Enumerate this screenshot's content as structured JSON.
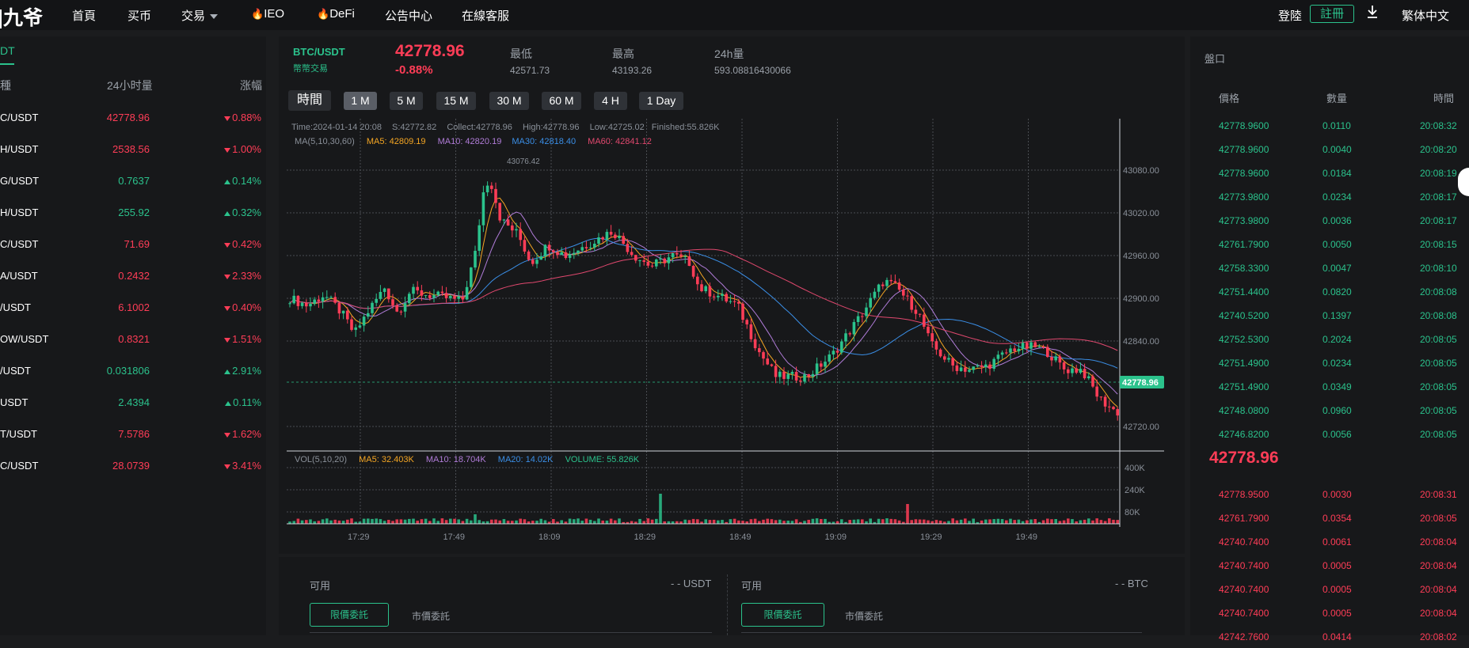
{
  "nav": {
    "logo": "九爷",
    "items": [
      "首頁",
      "买币",
      "交易",
      "IEO",
      "DeFi",
      "公告中心",
      "在線客服"
    ],
    "login": "登陸",
    "register": "註冊",
    "language": "繁体中文"
  },
  "market_list": {
    "tab": "DT",
    "headers": {
      "name": "種",
      "volume": "24小时量",
      "change": "涨幅"
    },
    "rows": [
      {
        "symbol": "C/USDT",
        "price": "42778.96",
        "change": "0.88%",
        "dir": "down"
      },
      {
        "symbol": "H/USDT",
        "price": "2538.56",
        "change": "1.00%",
        "dir": "down"
      },
      {
        "symbol": "G/USDT",
        "price": "0.7637",
        "change": "0.14%",
        "dir": "up"
      },
      {
        "symbol": "H/USDT",
        "price": "255.92",
        "change": "0.32%",
        "dir": "up"
      },
      {
        "symbol": "C/USDT",
        "price": "71.69",
        "change": "0.42%",
        "dir": "down"
      },
      {
        "symbol": "A/USDT",
        "price": "0.2432",
        "change": "2.33%",
        "dir": "down"
      },
      {
        "symbol": "/USDT",
        "price": "6.1002",
        "change": "0.40%",
        "dir": "down"
      },
      {
        "symbol": "OW/USDT",
        "price": "0.8321",
        "change": "1.51%",
        "dir": "down"
      },
      {
        "symbol": "/USDT",
        "price": "0.031806",
        "change": "2.91%",
        "dir": "up"
      },
      {
        "symbol": "USDT",
        "price": "2.4394",
        "change": "0.11%",
        "dir": "up"
      },
      {
        "symbol": "T/USDT",
        "price": "7.5786",
        "change": "1.62%",
        "dir": "down"
      },
      {
        "symbol": "C/USDT",
        "price": "28.0739",
        "change": "3.41%",
        "dir": "down"
      }
    ]
  },
  "ticker": {
    "pair": "BTC/USDT",
    "sub": "幣幣交易",
    "price": "42778.96",
    "change": "-0.88%",
    "low_label": "最低",
    "low": "42571.73",
    "high_label": "最高",
    "high": "43193.26",
    "vol_label": "24h量",
    "vol": "593.08816430066"
  },
  "intervals": {
    "time_label": "時間",
    "items": [
      "1 M",
      "5 M",
      "15 M",
      "30 M",
      "60 M",
      "4 H",
      "1 Day"
    ],
    "active": "1 M"
  },
  "chart_info": {
    "line1": [
      "Time:2024-01-14 20:08",
      "S:42772.82",
      "Collect:42778.96",
      "High:42778.96",
      "Low:42725.02",
      "Finished:55.826K"
    ],
    "ma_label": "MA(5,10,30,60)",
    "ma5": "MA5: 42809.19",
    "ma10": "MA10: 42820.19",
    "ma30": "MA30: 42818.40",
    "ma60": "MA60: 42841.12",
    "vol_label": "VOL(5,10,20)",
    "vol_ma5": "MA5: 32.403K",
    "vol_ma10": "MA10: 18.704K",
    "vol_ma20": "MA20: 14.02K",
    "vol_now": "VOLUME: 55.826K",
    "peak_label": "43076.42",
    "last_price_tag": "42778.96"
  },
  "chart_data": {
    "type": "candlestick",
    "y_ticks": [
      "43080.00",
      "43020.00",
      "42960.00",
      "42900.00",
      "42840.00",
      "42720.00"
    ],
    "vol_ticks": [
      "400K",
      "240K",
      "80K"
    ],
    "x_ticks": [
      "17:29",
      "17:49",
      "18:09",
      "18:29",
      "18:49",
      "19:09",
      "19:29",
      "19:49"
    ],
    "ylim": [
      42690,
      43130
    ],
    "colors": {
      "up": "#2bc28c",
      "down": "#ff3d57",
      "ma5": "#f5a623",
      "ma10": "#b07cd8",
      "ma30": "#3a8ee6",
      "ma60": "#e0486e"
    }
  },
  "trade": {
    "avail_label": "可用",
    "avail_usdt": "- - USDT",
    "avail_btc": "- - BTC",
    "limit": "限價委託",
    "market": "市價委託"
  },
  "orderbook": {
    "title": "盤口",
    "headers": [
      "價格",
      "數量",
      "時間"
    ],
    "mid_price": "42778.96",
    "buys": [
      [
        "42778.9600",
        "0.0110",
        "20:08:32"
      ],
      [
        "42778.9600",
        "0.0040",
        "20:08:20"
      ],
      [
        "42778.9600",
        "0.0184",
        "20:08:19"
      ],
      [
        "42773.9800",
        "0.0234",
        "20:08:17"
      ],
      [
        "42773.9800",
        "0.0036",
        "20:08:17"
      ],
      [
        "42761.7900",
        "0.0050",
        "20:08:15"
      ],
      [
        "42758.3300",
        "0.0047",
        "20:08:10"
      ],
      [
        "42751.4400",
        "0.0820",
        "20:08:08"
      ],
      [
        "42740.5200",
        "0.1397",
        "20:08:08"
      ],
      [
        "42752.5300",
        "0.2024",
        "20:08:05"
      ],
      [
        "42751.4900",
        "0.0234",
        "20:08:05"
      ],
      [
        "42751.4900",
        "0.0349",
        "20:08:05"
      ],
      [
        "42748.0800",
        "0.0960",
        "20:08:05"
      ],
      [
        "42746.8200",
        "0.0056",
        "20:08:05"
      ]
    ],
    "sells": [
      [
        "42778.9500",
        "0.0030",
        "20:08:31"
      ],
      [
        "42761.7900",
        "0.0354",
        "20:08:05"
      ],
      [
        "42740.7400",
        "0.0061",
        "20:08:04"
      ],
      [
        "42740.7400",
        "0.0005",
        "20:08:04"
      ],
      [
        "42740.7400",
        "0.0005",
        "20:08:04"
      ],
      [
        "42740.7400",
        "0.0005",
        "20:08:04"
      ],
      [
        "42742.7600",
        "0.0414",
        "20:08:02"
      ]
    ]
  }
}
